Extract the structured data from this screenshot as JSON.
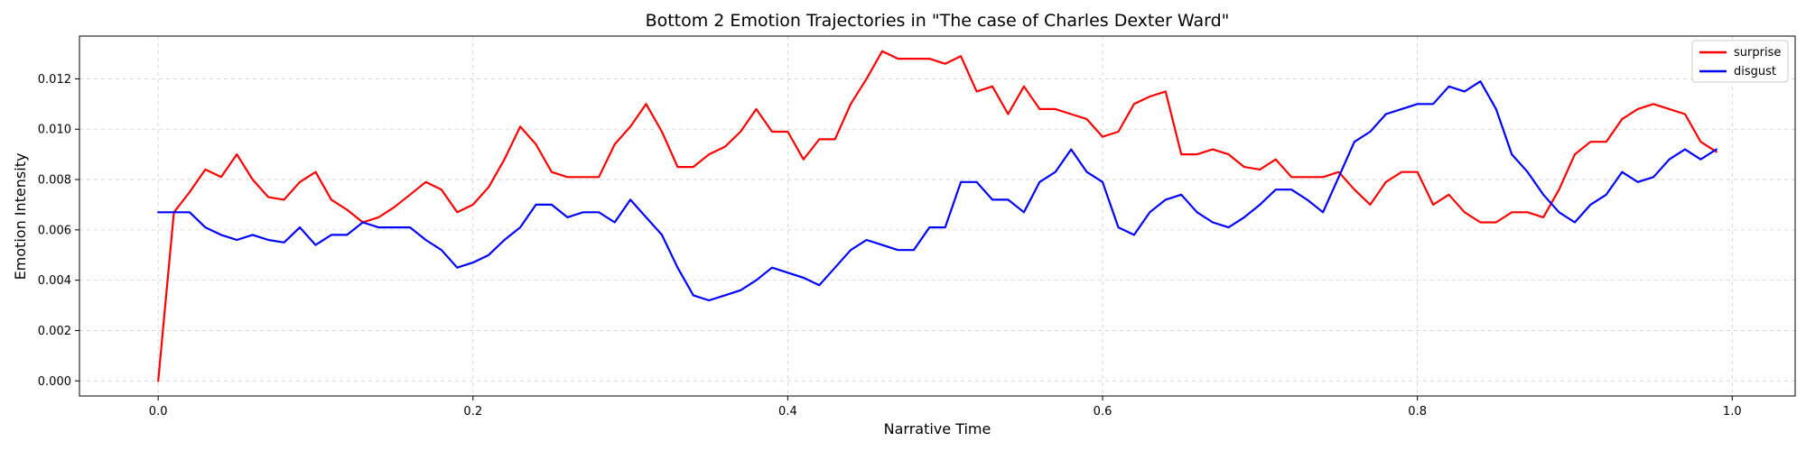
{
  "chart_data": {
    "type": "line",
    "title": "Bottom 2 Emotion Trajectories in \"The case of Charles Dexter Ward\"",
    "xlabel": "Narrative Time",
    "ylabel": "Emotion Intensity",
    "xlim": [
      -0.05,
      1.04
    ],
    "ylim": [
      -0.0006,
      0.0137
    ],
    "xticks": [
      0.0,
      0.2,
      0.4,
      0.6,
      0.8,
      1.0
    ],
    "xtick_labels": [
      "0.0",
      "0.2",
      "0.4",
      "0.6",
      "0.8",
      "1.0"
    ],
    "yticks": [
      0.0,
      0.002,
      0.004,
      0.006,
      0.008,
      0.01,
      0.012
    ],
    "ytick_labels": [
      "0.000",
      "0.002",
      "0.004",
      "0.006",
      "0.008",
      "0.010",
      "0.012"
    ],
    "grid": true,
    "legend_position": "top-right",
    "x": [
      0.0,
      0.01,
      0.02,
      0.03,
      0.04,
      0.05,
      0.06,
      0.07,
      0.08,
      0.09,
      0.1,
      0.11,
      0.12,
      0.13,
      0.14,
      0.15,
      0.16,
      0.17,
      0.18,
      0.19,
      0.2,
      0.21,
      0.22,
      0.23,
      0.24,
      0.25,
      0.26,
      0.27,
      0.28,
      0.29,
      0.3,
      0.31,
      0.32,
      0.33,
      0.34,
      0.35,
      0.36,
      0.37,
      0.38,
      0.39,
      0.4,
      0.41,
      0.42,
      0.43,
      0.44,
      0.45,
      0.46,
      0.47,
      0.48,
      0.49,
      0.5,
      0.51,
      0.52,
      0.53,
      0.54,
      0.55,
      0.56,
      0.57,
      0.58,
      0.59,
      0.6,
      0.61,
      0.62,
      0.63,
      0.64,
      0.65,
      0.66,
      0.67,
      0.68,
      0.69,
      0.7,
      0.71,
      0.72,
      0.73,
      0.74,
      0.75,
      0.76,
      0.77,
      0.78,
      0.79,
      0.8,
      0.81,
      0.82,
      0.83,
      0.84,
      0.85,
      0.86,
      0.87,
      0.88,
      0.89,
      0.9,
      0.91,
      0.92,
      0.93,
      0.94,
      0.95,
      0.96,
      0.97,
      0.98,
      0.99
    ],
    "series": [
      {
        "name": "surprise",
        "color": "#ff0000",
        "values": [
          0.0,
          0.0067,
          0.0075,
          0.0084,
          0.0081,
          0.009,
          0.008,
          0.0073,
          0.0072,
          0.0079,
          0.0083,
          0.0072,
          0.0068,
          0.0063,
          0.0065,
          0.0069,
          0.0074,
          0.0079,
          0.0076,
          0.0067,
          0.007,
          0.0077,
          0.0088,
          0.0101,
          0.0094,
          0.0083,
          0.0081,
          0.0081,
          0.0081,
          0.0094,
          0.0101,
          0.011,
          0.0099,
          0.0085,
          0.0085,
          0.009,
          0.0093,
          0.0099,
          0.0108,
          0.0099,
          0.0099,
          0.0088,
          0.0096,
          0.0096,
          0.011,
          0.012,
          0.0131,
          0.0128,
          0.0128,
          0.0128,
          0.0126,
          0.0129,
          0.0115,
          0.0117,
          0.0106,
          0.0117,
          0.0108,
          0.0108,
          0.0106,
          0.0104,
          0.0097,
          0.0099,
          0.011,
          0.0113,
          0.0115,
          0.009,
          0.009,
          0.0092,
          0.009,
          0.0085,
          0.0084,
          0.0088,
          0.0081,
          0.0081,
          0.0081,
          0.0083,
          0.0076,
          0.007,
          0.0079,
          0.0083,
          0.0083,
          0.007,
          0.0074,
          0.0067,
          0.0063,
          0.0063,
          0.0067,
          0.0067,
          0.0065,
          0.0076,
          0.009,
          0.0095,
          0.0095,
          0.0104,
          0.0108,
          0.011,
          0.0108,
          0.0106,
          0.0095,
          0.0091
        ]
      },
      {
        "name": "disgust",
        "color": "#0000ff",
        "values": [
          0.0067,
          0.0067,
          0.0067,
          0.0061,
          0.0058,
          0.0056,
          0.0058,
          0.0056,
          0.0055,
          0.0061,
          0.0054,
          0.0058,
          0.0058,
          0.0063,
          0.0061,
          0.0061,
          0.0061,
          0.0056,
          0.0052,
          0.0045,
          0.0047,
          0.005,
          0.0056,
          0.0061,
          0.007,
          0.007,
          0.0065,
          0.0067,
          0.0067,
          0.0063,
          0.0072,
          0.0065,
          0.0058,
          0.0045,
          0.0034,
          0.0032,
          0.0034,
          0.0036,
          0.004,
          0.0045,
          0.0043,
          0.0041,
          0.0038,
          0.0045,
          0.0052,
          0.0056,
          0.0054,
          0.0052,
          0.0052,
          0.0061,
          0.0061,
          0.0079,
          0.0079,
          0.0072,
          0.0072,
          0.0067,
          0.0079,
          0.0083,
          0.0092,
          0.0083,
          0.0079,
          0.0061,
          0.0058,
          0.0067,
          0.0072,
          0.0074,
          0.0067,
          0.0063,
          0.0061,
          0.0065,
          0.007,
          0.0076,
          0.0076,
          0.0072,
          0.0067,
          0.0081,
          0.0095,
          0.0099,
          0.0106,
          0.0108,
          0.011,
          0.011,
          0.0117,
          0.0115,
          0.0119,
          0.0108,
          0.009,
          0.0083,
          0.0074,
          0.0067,
          0.0063,
          0.007,
          0.0074,
          0.0083,
          0.0079,
          0.0081,
          0.0088,
          0.0092,
          0.0088,
          0.0092
        ]
      }
    ]
  }
}
